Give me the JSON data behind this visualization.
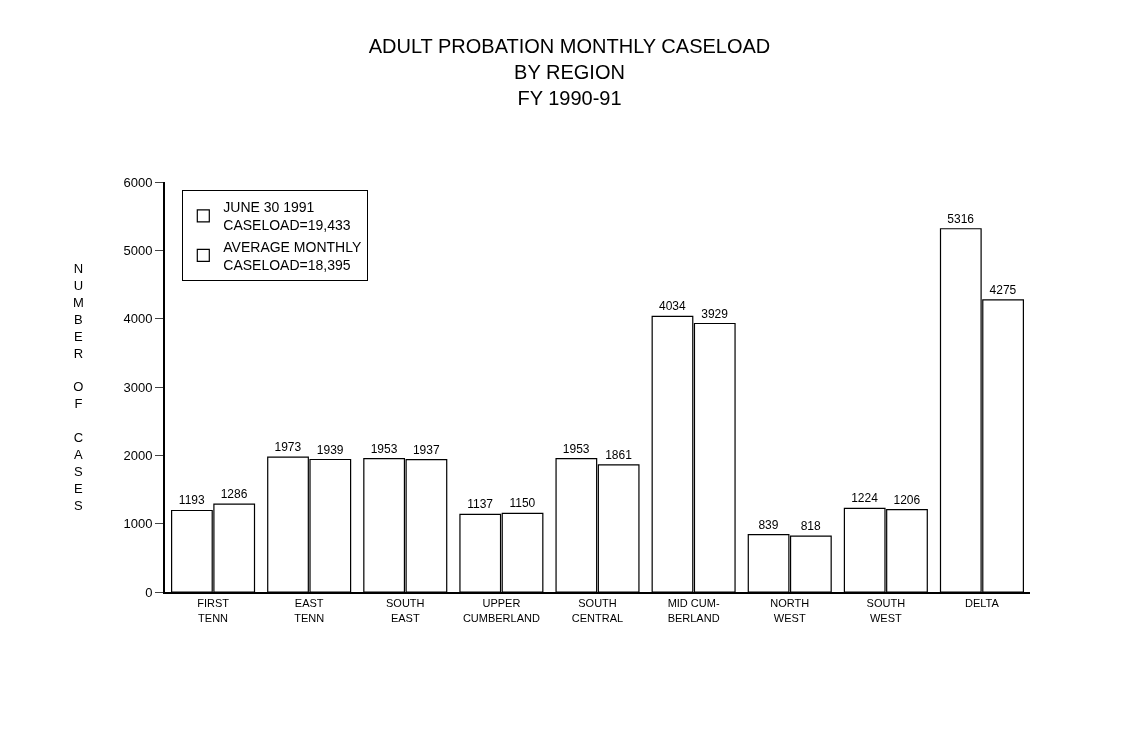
{
  "chart_data": {
    "type": "bar",
    "title": "ADULT PROBATION MONTHLY CASELOAD\nBY REGION\nFY 1990-91",
    "ylabel": "NUMBER OF CASES",
    "categories": [
      "FIRST\nTENN",
      "EAST\nTENN",
      "SOUTH\nEAST",
      "UPPER\nCUMBERLAND",
      "SOUTH\nCENTRAL",
      "MID CUM-\nBERLAND",
      "NORTH\nWEST",
      "SOUTH\nWEST",
      "DELTA"
    ],
    "series": [
      {
        "name": "JUNE 30 1991\nCASELOAD=19,433",
        "color": "#ffffff",
        "values": [
          1193,
          1973,
          1953,
          1137,
          1953,
          4034,
          839,
          1224,
          5316
        ]
      },
      {
        "name": "AVERAGE MONTHLY\nCASELOAD=18,395",
        "color": "#ffffff",
        "values": [
          1286,
          1939,
          1937,
          1150,
          1861,
          3929,
          818,
          1206,
          4275
        ]
      }
    ],
    "ylim": [
      0,
      6000
    ],
    "yticks": [
      0,
      1000,
      2000,
      3000,
      4000,
      5000,
      6000
    ],
    "data_labels": true,
    "legend": "top left"
  }
}
